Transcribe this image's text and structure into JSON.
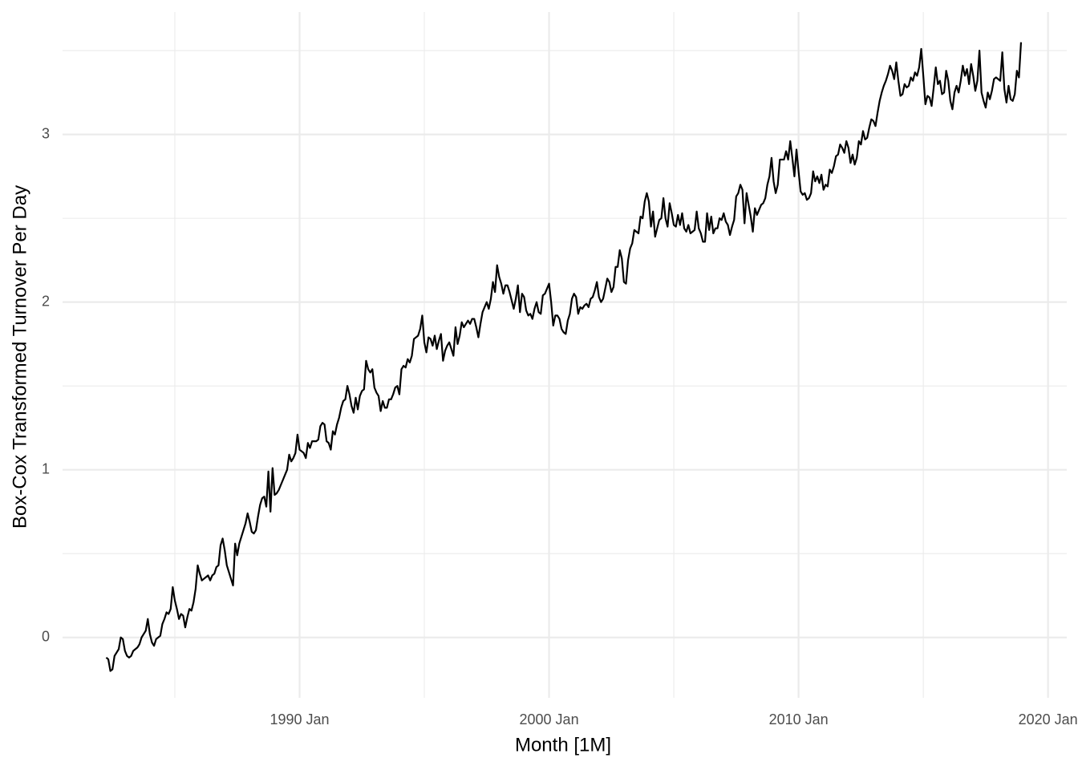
{
  "chart_data": {
    "type": "line",
    "x_label": "Month [1M]",
    "y_label": "Box-Cox Transformed Turnover Per Day",
    "color": "#000000",
    "grid": true,
    "xlim": [
      "1980 Jul",
      "2020 Oct"
    ],
    "xticks": [
      "1990 Jan",
      "2000 Jan",
      "2010 Jan",
      "2020 Jan"
    ],
    "ylim": [
      -0.36,
      3.73
    ],
    "yticks": [
      0,
      1,
      2,
      3
    ],
    "x": [
      "1982 Apr",
      "1982 May",
      "1982 Jun",
      "1982 Jul",
      "1982 Aug",
      "1982 Sep",
      "1982 Oct",
      "1982 Nov",
      "1982 Dec",
      "1983 Jan",
      "1983 Feb",
      "1983 Mar",
      "1983 Apr",
      "1983 May",
      "1983 Jun",
      "1983 Jul",
      "1983 Aug",
      "1983 Sep",
      "1983 Oct",
      "1983 Nov",
      "1983 Dec",
      "1984 Jan",
      "1984 Feb",
      "1984 Mar",
      "1984 Apr",
      "1984 May",
      "1984 Jun",
      "1984 Jul",
      "1984 Aug",
      "1984 Sep",
      "1984 Oct",
      "1984 Nov",
      "1984 Dec",
      "1985 Jan",
      "1985 Feb",
      "1985 Mar",
      "1985 Apr",
      "1985 May",
      "1985 Jun",
      "1985 Jul",
      "1985 Aug",
      "1985 Sep",
      "1985 Oct",
      "1985 Nov",
      "1985 Dec",
      "1986 Jan",
      "1986 Feb",
      "1986 Mar",
      "1986 Apr",
      "1986 May",
      "1986 Jun",
      "1986 Jul",
      "1986 Aug",
      "1986 Sep",
      "1986 Oct",
      "1986 Nov",
      "1986 Dec",
      "1987 Jan",
      "1987 Feb",
      "1987 Mar",
      "1987 Apr",
      "1987 May",
      "1987 Jun",
      "1987 Jul",
      "1987 Aug",
      "1987 Sep",
      "1987 Oct",
      "1987 Nov",
      "1987 Dec",
      "1988 Jan",
      "1988 Feb",
      "1988 Mar",
      "1988 Apr",
      "1988 May",
      "1988 Jun",
      "1988 Jul",
      "1988 Aug",
      "1988 Sep",
      "1988 Oct",
      "1988 Nov",
      "1988 Dec",
      "1989 Jan",
      "1989 Feb",
      "1989 Mar",
      "1989 Apr",
      "1989 May",
      "1989 Jun",
      "1989 Jul",
      "1989 Aug",
      "1989 Sep",
      "1989 Oct",
      "1989 Nov",
      "1989 Dec",
      "1990 Jan",
      "1990 Feb",
      "1990 Mar",
      "1990 Apr",
      "1990 May",
      "1990 Jun",
      "1990 Jul",
      "1990 Aug",
      "1990 Sep",
      "1990 Oct",
      "1990 Nov",
      "1990 Dec",
      "1991 Jan",
      "1991 Feb",
      "1991 Mar",
      "1991 Apr",
      "1991 May",
      "1991 Jun",
      "1991 Jul",
      "1991 Aug",
      "1991 Sep",
      "1991 Oct",
      "1991 Nov",
      "1991 Dec",
      "1992 Jan",
      "1992 Feb",
      "1992 Mar",
      "1992 Apr",
      "1992 May",
      "1992 Jun",
      "1992 Jul",
      "1992 Aug",
      "1992 Sep",
      "1992 Oct",
      "1992 Nov",
      "1992 Dec",
      "1993 Jan",
      "1993 Feb",
      "1993 Mar",
      "1993 Apr",
      "1993 May",
      "1993 Jun",
      "1993 Jul",
      "1993 Aug",
      "1993 Sep",
      "1993 Oct",
      "1993 Nov",
      "1993 Dec",
      "1994 Jan",
      "1994 Feb",
      "1994 Mar",
      "1994 Apr",
      "1994 May",
      "1994 Jun",
      "1994 Jul",
      "1994 Aug",
      "1994 Sep",
      "1994 Oct",
      "1994 Nov",
      "1994 Dec",
      "1995 Jan",
      "1995 Feb",
      "1995 Mar",
      "1995 Apr",
      "1995 May",
      "1995 Jun",
      "1995 Jul",
      "1995 Aug",
      "1995 Sep",
      "1995 Oct",
      "1995 Nov",
      "1995 Dec",
      "1996 Jan",
      "1996 Feb",
      "1996 Mar",
      "1996 Apr",
      "1996 May",
      "1996 Jun",
      "1996 Jul",
      "1996 Aug",
      "1996 Sep",
      "1996 Oct",
      "1996 Nov",
      "1996 Dec",
      "1997 Jan",
      "1997 Feb",
      "1997 Mar",
      "1997 Apr",
      "1997 May",
      "1997 Jun",
      "1997 Jul",
      "1997 Aug",
      "1997 Sep",
      "1997 Oct",
      "1997 Nov",
      "1997 Dec",
      "1998 Jan",
      "1998 Feb",
      "1998 Mar",
      "1998 Apr",
      "1998 May",
      "1998 Jun",
      "1998 Jul",
      "1998 Aug",
      "1998 Sep",
      "1998 Oct",
      "1998 Nov",
      "1998 Dec",
      "1999 Jan",
      "1999 Feb",
      "1999 Mar",
      "1999 Apr",
      "1999 May",
      "1999 Jun",
      "1999 Jul",
      "1999 Aug",
      "1999 Sep",
      "1999 Oct",
      "1999 Nov",
      "1999 Dec",
      "2000 Jan",
      "2000 Feb",
      "2000 Mar",
      "2000 Apr",
      "2000 May",
      "2000 Jun",
      "2000 Jul",
      "2000 Aug",
      "2000 Sep",
      "2000 Oct",
      "2000 Nov",
      "2000 Dec",
      "2001 Jan",
      "2001 Feb",
      "2001 Mar",
      "2001 Apr",
      "2001 May",
      "2001 Jun",
      "2001 Jul",
      "2001 Aug",
      "2001 Sep",
      "2001 Oct",
      "2001 Nov",
      "2001 Dec",
      "2002 Jan",
      "2002 Feb",
      "2002 Mar",
      "2002 Apr",
      "2002 May",
      "2002 Jun",
      "2002 Jul",
      "2002 Aug",
      "2002 Sep",
      "2002 Oct",
      "2002 Nov",
      "2002 Dec",
      "2003 Jan",
      "2003 Feb",
      "2003 Mar",
      "2003 Apr",
      "2003 May",
      "2003 Jun",
      "2003 Jul",
      "2003 Aug",
      "2003 Sep",
      "2003 Oct",
      "2003 Nov",
      "2003 Dec",
      "2004 Jan",
      "2004 Feb",
      "2004 Mar",
      "2004 Apr",
      "2004 May",
      "2004 Jun",
      "2004 Jul",
      "2004 Aug",
      "2004 Sep",
      "2004 Oct",
      "2004 Nov",
      "2004 Dec",
      "2005 Jan",
      "2005 Feb",
      "2005 Mar",
      "2005 Apr",
      "2005 May",
      "2005 Jun",
      "2005 Jul",
      "2005 Aug",
      "2005 Sep",
      "2005 Oct",
      "2005 Nov",
      "2005 Dec",
      "2006 Jan",
      "2006 Feb",
      "2006 Mar",
      "2006 Apr",
      "2006 May",
      "2006 Jun",
      "2006 Jul",
      "2006 Aug",
      "2006 Sep",
      "2006 Oct",
      "2006 Nov",
      "2006 Dec",
      "2007 Jan",
      "2007 Feb",
      "2007 Mar",
      "2007 Apr",
      "2007 May",
      "2007 Jun",
      "2007 Jul",
      "2007 Aug",
      "2007 Sep",
      "2007 Oct",
      "2007 Nov",
      "2007 Dec",
      "2008 Jan",
      "2008 Feb",
      "2008 Mar",
      "2008 Apr",
      "2008 May",
      "2008 Jun",
      "2008 Jul",
      "2008 Aug",
      "2008 Sep",
      "2008 Oct",
      "2008 Nov",
      "2008 Dec",
      "2009 Jan",
      "2009 Feb",
      "2009 Mar",
      "2009 Apr",
      "2009 May",
      "2009 Jun",
      "2009 Jul",
      "2009 Aug",
      "2009 Sep",
      "2009 Oct",
      "2009 Nov",
      "2009 Dec",
      "2010 Jan",
      "2010 Feb",
      "2010 Mar",
      "2010 Apr",
      "2010 May",
      "2010 Jun",
      "2010 Jul",
      "2010 Aug",
      "2010 Sep",
      "2010 Oct",
      "2010 Nov",
      "2010 Dec",
      "2011 Jan",
      "2011 Feb",
      "2011 Mar",
      "2011 Apr",
      "2011 May",
      "2011 Jun",
      "2011 Jul",
      "2011 Aug",
      "2011 Sep",
      "2011 Oct",
      "2011 Nov",
      "2011 Dec",
      "2012 Jan",
      "2012 Feb",
      "2012 Mar",
      "2012 Apr",
      "2012 May",
      "2012 Jun",
      "2012 Jul",
      "2012 Aug",
      "2012 Sep",
      "2012 Oct",
      "2012 Nov",
      "2012 Dec",
      "2013 Jan",
      "2013 Feb",
      "2013 Mar",
      "2013 Apr",
      "2013 May",
      "2013 Jun",
      "2013 Jul",
      "2013 Aug",
      "2013 Sep",
      "2013 Oct",
      "2013 Nov",
      "2013 Dec",
      "2014 Jan",
      "2014 Feb",
      "2014 Mar",
      "2014 Apr",
      "2014 May",
      "2014 Jun",
      "2014 Jul",
      "2014 Aug",
      "2014 Sep",
      "2014 Oct",
      "2014 Nov",
      "2014 Dec",
      "2015 Jan",
      "2015 Feb",
      "2015 Mar",
      "2015 Apr",
      "2015 May",
      "2015 Jun",
      "2015 Jul",
      "2015 Aug",
      "2015 Sep",
      "2015 Oct",
      "2015 Nov",
      "2015 Dec",
      "2016 Jan",
      "2016 Feb",
      "2016 Mar",
      "2016 Apr",
      "2016 May",
      "2016 Jun",
      "2016 Jul",
      "2016 Aug",
      "2016 Sep",
      "2016 Oct",
      "2016 Nov",
      "2016 Dec",
      "2017 Jan",
      "2017 Feb",
      "2017 Mar",
      "2017 Apr",
      "2017 May",
      "2017 Jun",
      "2017 Jul",
      "2017 Aug",
      "2017 Sep",
      "2017 Oct",
      "2017 Nov",
      "2017 Dec",
      "2018 Jan",
      "2018 Feb",
      "2018 Mar",
      "2018 Apr",
      "2018 May",
      "2018 Jun",
      "2018 Jul",
      "2018 Aug",
      "2018 Sep",
      "2018 Oct",
      "2018 Nov",
      "2018 Dec"
    ],
    "values": [
      -0.12,
      -0.13,
      -0.2,
      -0.19,
      -0.11,
      -0.09,
      -0.07,
      0.0,
      -0.01,
      -0.08,
      -0.11,
      -0.12,
      -0.11,
      -0.08,
      -0.07,
      -0.06,
      -0.04,
      0.0,
      0.02,
      0.04,
      0.11,
      0.02,
      -0.03,
      -0.05,
      -0.01,
      0.0,
      0.01,
      0.08,
      0.11,
      0.15,
      0.14,
      0.17,
      0.3,
      0.22,
      0.17,
      0.11,
      0.14,
      0.13,
      0.06,
      0.12,
      0.17,
      0.16,
      0.21,
      0.29,
      0.43,
      0.38,
      0.34,
      0.35,
      0.36,
      0.37,
      0.34,
      0.37,
      0.38,
      0.42,
      0.43,
      0.55,
      0.59,
      0.52,
      0.43,
      0.39,
      0.35,
      0.31,
      0.56,
      0.49,
      0.56,
      0.6,
      0.64,
      0.68,
      0.74,
      0.69,
      0.63,
      0.62,
      0.64,
      0.72,
      0.79,
      0.83,
      0.84,
      0.78,
      0.99,
      0.75,
      1.01,
      0.85,
      0.86,
      0.88,
      0.91,
      0.94,
      0.97,
      1.0,
      1.09,
      1.05,
      1.07,
      1.1,
      1.21,
      1.12,
      1.11,
      1.1,
      1.07,
      1.16,
      1.13,
      1.17,
      1.17,
      1.17,
      1.18,
      1.26,
      1.28,
      1.27,
      1.17,
      1.16,
      1.12,
      1.23,
      1.21,
      1.27,
      1.31,
      1.37,
      1.41,
      1.42,
      1.5,
      1.45,
      1.38,
      1.34,
      1.43,
      1.36,
      1.44,
      1.47,
      1.48,
      1.65,
      1.6,
      1.58,
      1.6,
      1.49,
      1.46,
      1.44,
      1.35,
      1.41,
      1.37,
      1.37,
      1.42,
      1.42,
      1.45,
      1.49,
      1.5,
      1.45,
      1.6,
      1.62,
      1.61,
      1.66,
      1.64,
      1.68,
      1.78,
      1.79,
      1.8,
      1.84,
      1.92,
      1.76,
      1.7,
      1.79,
      1.78,
      1.74,
      1.8,
      1.72,
      1.77,
      1.81,
      1.65,
      1.71,
      1.74,
      1.76,
      1.72,
      1.68,
      1.85,
      1.75,
      1.8,
      1.88,
      1.85,
      1.87,
      1.89,
      1.87,
      1.9,
      1.9,
      1.85,
      1.79,
      1.87,
      1.94,
      1.97,
      2.0,
      1.96,
      2.02,
      2.12,
      2.06,
      2.22,
      2.15,
      2.11,
      2.05,
      2.1,
      2.1,
      2.06,
      2.01,
      1.96,
      2.02,
      2.1,
      1.94,
      2.05,
      2.03,
      1.95,
      1.92,
      1.93,
      1.9,
      1.96,
      2.0,
      1.94,
      1.93,
      2.04,
      2.05,
      2.08,
      2.11,
      2.0,
      1.86,
      1.92,
      1.92,
      1.9,
      1.84,
      1.82,
      1.81,
      1.89,
      1.93,
      2.02,
      2.05,
      2.03,
      1.93,
      1.97,
      1.96,
      1.98,
      1.99,
      1.97,
      2.02,
      2.03,
      2.07,
      2.12,
      2.03,
      2.0,
      2.02,
      2.08,
      2.14,
      2.12,
      2.06,
      2.09,
      2.21,
      2.21,
      2.31,
      2.26,
      2.12,
      2.11,
      2.25,
      2.32,
      2.35,
      2.43,
      2.42,
      2.41,
      2.51,
      2.5,
      2.6,
      2.65,
      2.6,
      2.45,
      2.54,
      2.39,
      2.44,
      2.49,
      2.5,
      2.62,
      2.5,
      2.45,
      2.59,
      2.53,
      2.46,
      2.45,
      2.52,
      2.46,
      2.53,
      2.44,
      2.42,
      2.46,
      2.41,
      2.42,
      2.43,
      2.54,
      2.44,
      2.41,
      2.36,
      2.36,
      2.53,
      2.43,
      2.51,
      2.41,
      2.44,
      2.44,
      2.5,
      2.49,
      2.53,
      2.48,
      2.46,
      2.4,
      2.45,
      2.49,
      2.63,
      2.65,
      2.7,
      2.67,
      2.47,
      2.65,
      2.58,
      2.51,
      2.42,
      2.56,
      2.52,
      2.55,
      2.58,
      2.59,
      2.62,
      2.7,
      2.75,
      2.86,
      2.72,
      2.65,
      2.7,
      2.85,
      2.85,
      2.85,
      2.9,
      2.85,
      2.96,
      2.86,
      2.75,
      2.91,
      2.78,
      2.66,
      2.64,
      2.65,
      2.61,
      2.62,
      2.65,
      2.78,
      2.72,
      2.75,
      2.71,
      2.76,
      2.67,
      2.7,
      2.69,
      2.79,
      2.77,
      2.81,
      2.87,
      2.88,
      2.94,
      2.92,
      2.89,
      2.96,
      2.92,
      2.83,
      2.88,
      2.82,
      2.86,
      2.96,
      2.94,
      3.02,
      2.97,
      2.98,
      3.04,
      3.09,
      3.08,
      3.05,
      3.13,
      3.2,
      3.25,
      3.29,
      3.32,
      3.36,
      3.41,
      3.38,
      3.33,
      3.43,
      3.32,
      3.23,
      3.24,
      3.3,
      3.28,
      3.29,
      3.34,
      3.32,
      3.37,
      3.35,
      3.4,
      3.51,
      3.35,
      3.18,
      3.23,
      3.22,
      3.17,
      3.28,
      3.4,
      3.3,
      3.32,
      3.24,
      3.25,
      3.38,
      3.32,
      3.2,
      3.15,
      3.25,
      3.29,
      3.25,
      3.32,
      3.41,
      3.35,
      3.39,
      3.3,
      3.42,
      3.35,
      3.26,
      3.32,
      3.5,
      3.25,
      3.2,
      3.16,
      3.25,
      3.21,
      3.26,
      3.33,
      3.34,
      3.33,
      3.32,
      3.49,
      3.27,
      3.19,
      3.29,
      3.21,
      3.2,
      3.24,
      3.38,
      3.34,
      3.55
    ]
  }
}
